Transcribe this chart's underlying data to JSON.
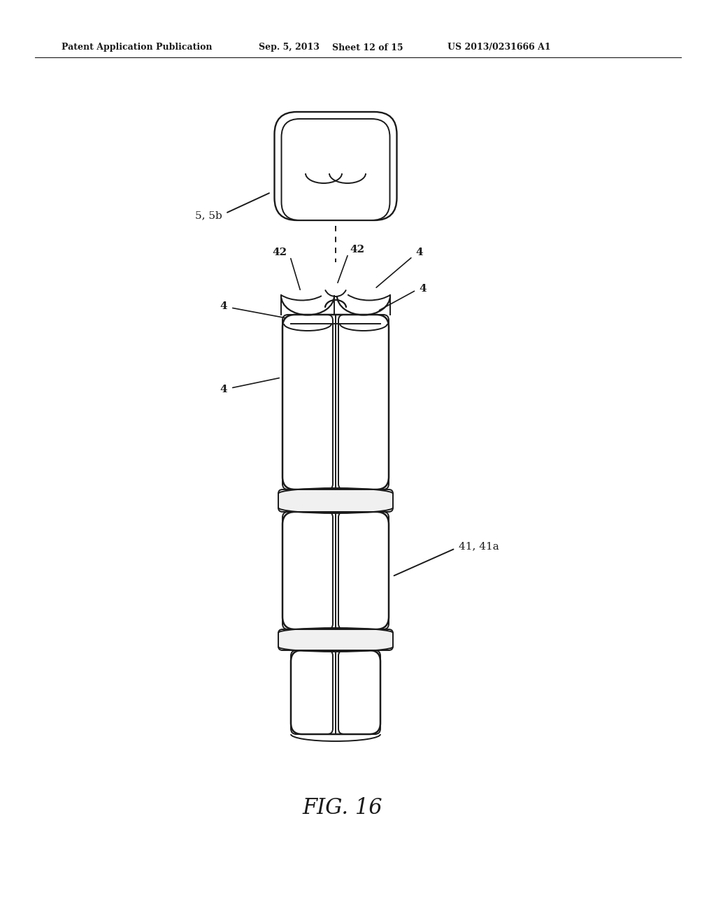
{
  "bg_color": "#ffffff",
  "line_color": "#1a1a1a",
  "line_width": 1.4,
  "header_text": "Patent Application Publication",
  "header_date": "Sep. 5, 2013",
  "header_sheet": "Sheet 12 of 15",
  "header_patent": "US 2013/0231666 A1",
  "figure_label": "FIG. 16",
  "label_55b": "5, 5b",
  "label_4141a": "41, 41a",
  "label_42": "42",
  "label_4": "4"
}
